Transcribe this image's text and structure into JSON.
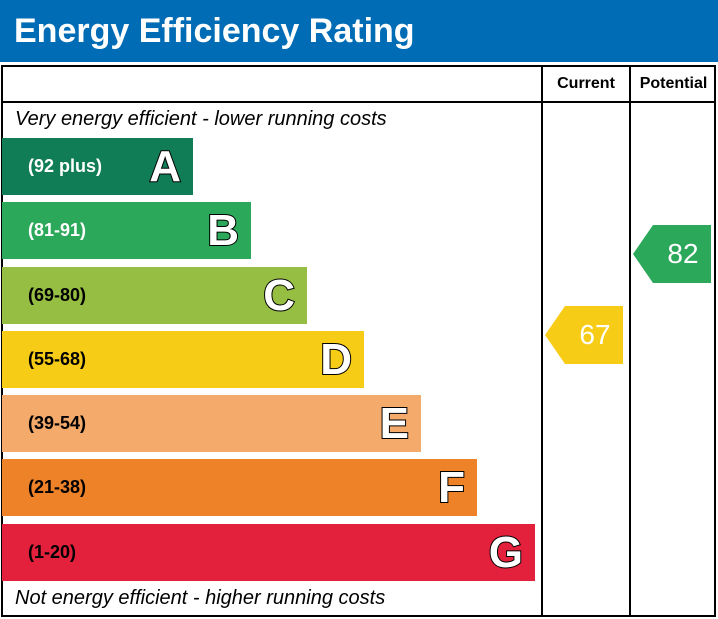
{
  "title": "Energy Efficiency Rating",
  "columns": {
    "current": "Current",
    "potential": "Potential"
  },
  "top_note": "Very energy efficient - lower running costs",
  "bottom_note": "Not energy efficient - higher running costs",
  "chart_data": {
    "type": "bar",
    "bands": [
      {
        "letter": "A",
        "range": "(92 plus)",
        "color": "#107d57",
        "text_color": "#ffffff"
      },
      {
        "letter": "B",
        "range": "(81-91)",
        "color": "#2ca85a",
        "text_color": "#ffffff"
      },
      {
        "letter": "C",
        "range": "(69-80)",
        "color": "#95be43",
        "text_color": "#000000"
      },
      {
        "letter": "D",
        "range": "(55-68)",
        "color": "#f7cc17",
        "text_color": "#000000"
      },
      {
        "letter": "E",
        "range": "(39-54)",
        "color": "#f3aa6b",
        "text_color": "#000000"
      },
      {
        "letter": "F",
        "range": "(21-38)",
        "color": "#ee8228",
        "text_color": "#000000"
      },
      {
        "letter": "G",
        "range": "(1-20)",
        "color": "#e3213d",
        "text_color": "#000000"
      }
    ],
    "current": {
      "value": "67",
      "band": "D",
      "color": "#f7cc17"
    },
    "potential": {
      "value": "82",
      "band": "B",
      "color": "#2ca85a"
    }
  }
}
